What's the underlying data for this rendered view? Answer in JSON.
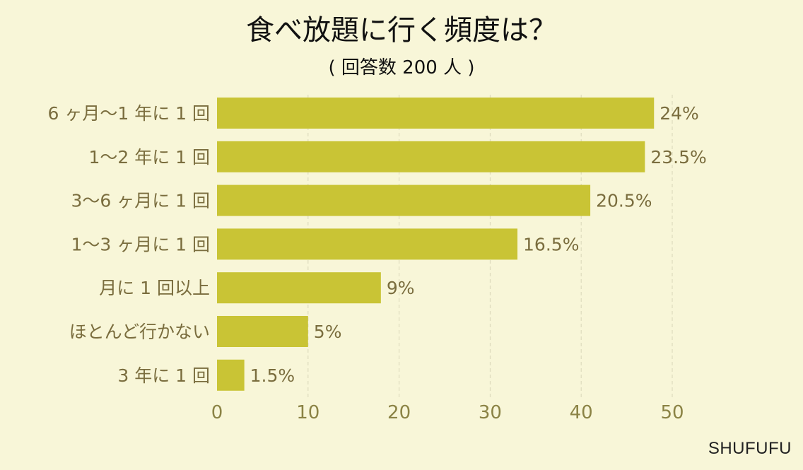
{
  "chart_data": {
    "type": "bar",
    "orientation": "horizontal",
    "title": "食べ放題に行く頻度は？",
    "subtitle": "( 回答数 200 人 )",
    "categories": [
      "6 ヶ月〜1 年に 1 回",
      "1〜2 年に 1 回",
      "3〜6 ヶ月に 1 回",
      "1〜3 ヶ月に 1 回",
      "月に 1 回以上",
      "ほとんど行かない",
      "3 年に 1 回"
    ],
    "values": [
      48,
      47,
      41,
      33,
      18,
      10,
      3
    ],
    "data_labels": [
      "24%",
      "23.5%",
      "20.5%",
      "16.5%",
      "9%",
      "5%",
      "1.5%"
    ],
    "xlim": [
      0,
      50
    ],
    "xticks": [
      0,
      10,
      20,
      30,
      40,
      50
    ],
    "grid": true,
    "bar_color": "#c9c435"
  },
  "brand": "SHUFUFU"
}
